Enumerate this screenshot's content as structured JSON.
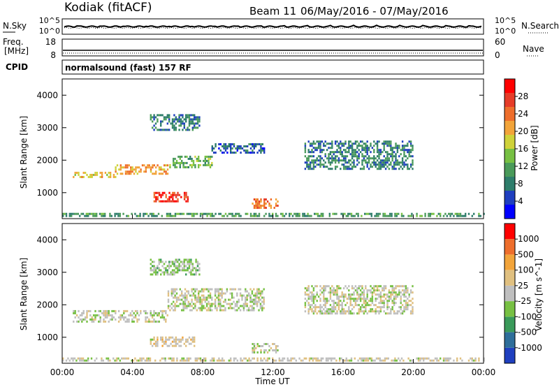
{
  "header": {
    "station": "Kodiak (fitACF)",
    "beam": "Beam 11",
    "date_range": "06/May/2016 - 07/May/2016"
  },
  "summary_panels": {
    "noise": {
      "left_label": "N.Sky",
      "right_label": "N.Search",
      "left_ticks": [
        "10^5",
        "10^0"
      ],
      "right_ticks": [
        "10^5",
        "10^0"
      ]
    },
    "freq": {
      "left_label_line1": "Freq.",
      "left_label_line2": "[MHz]",
      "right_label": "Nave",
      "left_ticks": [
        "18",
        "8"
      ],
      "right_ticks": [
        "60",
        "0"
      ]
    },
    "cpid": {
      "label": "CPID",
      "text": "normalsound (fast) 157 RF"
    }
  },
  "chart_data": [
    {
      "type": "heatmap",
      "name": "power",
      "ylabel": "Slant Range [km]",
      "yticks": [
        "4000",
        "3000",
        "2000",
        "1000"
      ],
      "ytick_values": [
        4000,
        3000,
        2000,
        1000
      ],
      "ylim": [
        200,
        4500
      ],
      "xlim": [
        0,
        24
      ],
      "colorbar": {
        "label": "Power [dB]",
        "ticks": [
          "28",
          "24",
          "20",
          "16",
          "12",
          "8",
          "4"
        ],
        "colors": [
          "#0000ff",
          "#1f3fbf",
          "#2e7d6b",
          "#4a9a5a",
          "#77c043",
          "#cfd23a",
          "#f2a43a",
          "#ee6e2c",
          "#e63c28",
          "#ff0000"
        ]
      },
      "bands": [
        {
          "t0": 0.6,
          "t1": 3.0,
          "r0": 1450,
          "r1": 1620,
          "value": 18
        },
        {
          "t0": 3.0,
          "t1": 6.0,
          "r0": 1550,
          "r1": 1850,
          "value": 20
        },
        {
          "t0": 6.0,
          "t1": 8.5,
          "r0": 1750,
          "r1": 2100,
          "value": 12
        },
        {
          "t0": 8.5,
          "t1": 11.5,
          "r0": 2200,
          "r1": 2500,
          "value": 6
        },
        {
          "t0": 5.2,
          "t1": 7.2,
          "r0": 700,
          "r1": 1000,
          "value": 26
        },
        {
          "t0": 10.8,
          "t1": 12.3,
          "r0": 500,
          "r1": 800,
          "value": 22
        },
        {
          "t0": 5.0,
          "t1": 7.8,
          "r0": 2900,
          "r1": 3400,
          "value": 8
        },
        {
          "t0": 13.8,
          "t1": 20.0,
          "r0": 1700,
          "r1": 2600,
          "value": 8
        },
        {
          "t0": 0.0,
          "t1": 24.0,
          "r0": 250,
          "r1": 350,
          "value": 10
        }
      ]
    },
    {
      "type": "heatmap",
      "name": "velocity",
      "ylabel": "Slant Range [km]",
      "yticks": [
        "4000",
        "3000",
        "2000",
        "1000"
      ],
      "ytick_values": [
        4000,
        3000,
        2000,
        1000
      ],
      "ylim": [
        200,
        4500
      ],
      "xlim": [
        0,
        24
      ],
      "xlabel": "Time UT",
      "xticks": [
        "00:00",
        "04:00",
        "08:00",
        "12:00",
        "16:00",
        "20:00",
        "00:00"
      ],
      "xtick_values": [
        0,
        4,
        8,
        12,
        16,
        20,
        24
      ],
      "colorbar": {
        "label": "Velocity [m s^-1]",
        "ticks": [
          "1000",
          "500",
          "100",
          "25",
          "-25",
          "-100",
          "-500",
          "-1000"
        ],
        "colors": [
          "#1f3fbf",
          "#2e6e9a",
          "#3a9a5a",
          "#77c043",
          "#bfbfbf",
          "#e0c080",
          "#f2a43a",
          "#ee6e2c",
          "#ff0000"
        ]
      },
      "bands": [
        {
          "t0": 0.6,
          "t1": 6.0,
          "r0": 1450,
          "r1": 1800,
          "value": 0
        },
        {
          "t0": 6.0,
          "t1": 11.5,
          "r0": 1800,
          "r1": 2500,
          "value": 0
        },
        {
          "t0": 5.0,
          "t1": 7.5,
          "r0": 700,
          "r1": 1000,
          "value": 120
        },
        {
          "t0": 10.8,
          "t1": 12.3,
          "r0": 500,
          "r1": 800,
          "value": 0
        },
        {
          "t0": 5.0,
          "t1": 7.8,
          "r0": 2900,
          "r1": 3400,
          "value": -150
        },
        {
          "t0": 13.8,
          "t1": 20.0,
          "r0": 1700,
          "r1": 2600,
          "value": 0
        },
        {
          "t0": 0.0,
          "t1": 24.0,
          "r0": 250,
          "r1": 330,
          "value": 80
        }
      ]
    }
  ]
}
